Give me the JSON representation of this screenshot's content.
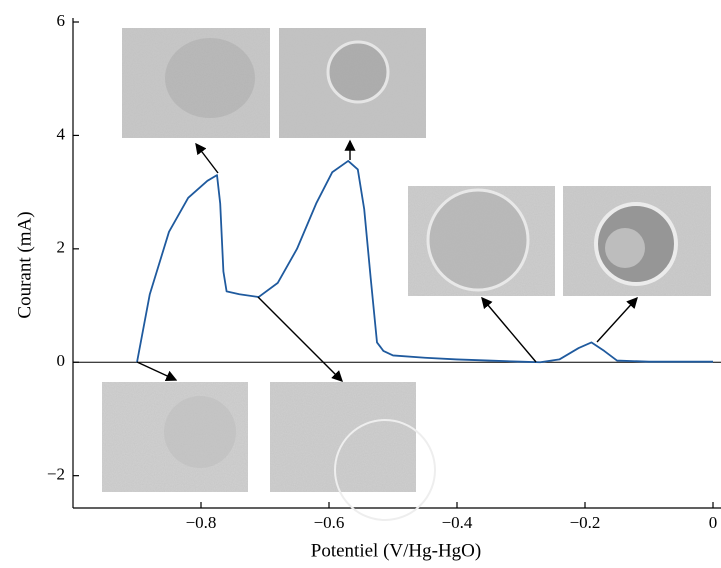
{
  "chart_data": {
    "type": "line",
    "x_label": "Potentiel (V/Hg-HgO)",
    "y_label": "Courant (mA)",
    "xlim": [
      -1.0,
      0.0
    ],
    "ylim": [
      -2.57,
      6
    ],
    "xticks": [
      {
        "value": -0.8,
        "label": "−0.8"
      },
      {
        "value": -0.6,
        "label": "−0.6"
      },
      {
        "value": -0.4,
        "label": "−0.4"
      },
      {
        "value": -0.2,
        "label": "−0.2"
      },
      0
    ],
    "yticks": [
      {
        "value": -2,
        "label": "−2"
      },
      0,
      2,
      4,
      6
    ],
    "zero_line": true,
    "series": [
      {
        "color": "#1f5a9e",
        "x": [
          -0.9,
          -0.88,
          -0.85,
          -0.82,
          -0.79,
          -0.775,
          -0.77,
          -0.765,
          -0.76,
          -0.74,
          -0.71,
          -0.68,
          -0.65,
          -0.62,
          -0.595,
          -0.57,
          -0.555,
          -0.545,
          -0.535,
          -0.525,
          -0.515,
          -0.5,
          -0.45,
          -0.4,
          -0.35,
          -0.3,
          -0.27,
          -0.24,
          -0.21,
          -0.19,
          -0.17,
          -0.15,
          -0.1,
          0.0
        ],
        "values": [
          0,
          1.2,
          2.3,
          2.9,
          3.2,
          3.3,
          2.8,
          1.6,
          1.25,
          1.2,
          1.15,
          1.4,
          2.0,
          2.8,
          3.35,
          3.55,
          3.4,
          2.7,
          1.5,
          0.35,
          0.2,
          0.12,
          0.08,
          0.05,
          0.03,
          0.01,
          0.0,
          0.05,
          0.25,
          0.35,
          0.2,
          0.03,
          0.01,
          0.01
        ]
      }
    ]
  }
}
